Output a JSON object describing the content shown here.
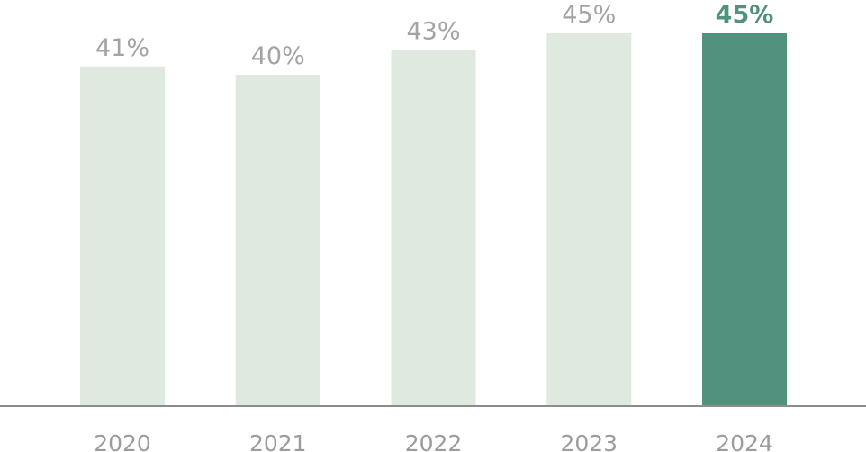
{
  "chart_data": {
    "type": "bar",
    "title": "",
    "xlabel": "",
    "ylabel": "",
    "categories": [
      "2020",
      "2021",
      "2022",
      "2023",
      "2024"
    ],
    "values": [
      41,
      40,
      43,
      45,
      45
    ],
    "value_labels": [
      "41%",
      "40%",
      "43%",
      "45%",
      "45%"
    ],
    "value_unit": "%",
    "ylim": [
      0,
      45
    ],
    "grid": false,
    "legend": "none",
    "highlight_index": 4,
    "colors": {
      "bar": "#dfe9e0",
      "bar_highlight": "#52917e",
      "axis": "#8c8c8c",
      "label": "#a3a3a3",
      "label_highlight": "#52917e",
      "category": "#9c9c9c"
    }
  }
}
